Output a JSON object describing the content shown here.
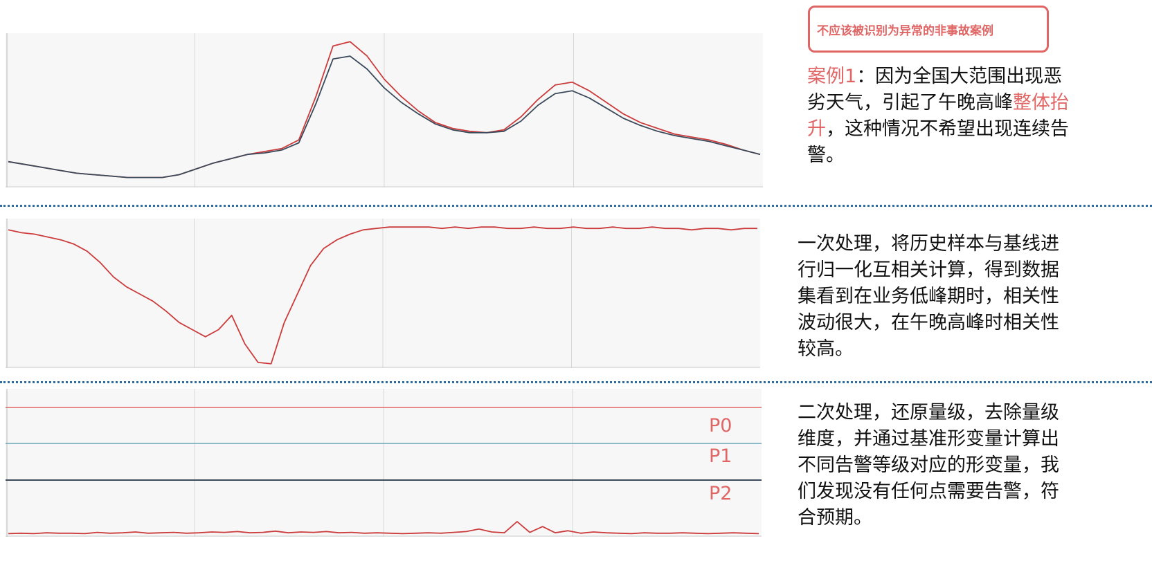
{
  "badge": {
    "text": "不应该被识别为异常的非事故案例"
  },
  "case1": {
    "prefix": "案例1",
    "part1": "：因为全国大范围出现恶劣天气，引起了午晚高峰",
    "highlight": "整体抬升",
    "part2": "，这种情况不希望出现连续告警。"
  },
  "step1": {
    "text": "一次处理，将历史样本与基线进行归一化互相关计算，得到数据集看到在业务低峰期时，相关性波动很大，在午晚高峰时相关性较高。"
  },
  "step2": {
    "text": "二次处理，还原量级，去除量级维度，并通过基准形变量计算出不同告警等级对应的形变量，我们发现没有任何点需要告警，符合预期。"
  },
  "thresholds": {
    "p0": "P0",
    "p1": "P1",
    "p2": "P2"
  },
  "colors": {
    "accent": "#e06666",
    "series_red": "#cc3b3b",
    "series_dark": "#3b4a5a",
    "p1_line": "#6aa6b8",
    "separator": "#2e6da4"
  },
  "chart_data": [
    {
      "type": "line",
      "grid": true,
      "series": [
        {
          "color": "#cc3b3b",
          "values": [
            15,
            13,
            11,
            9,
            7,
            6,
            5,
            4,
            4,
            4,
            6,
            10,
            14,
            17,
            20,
            22,
            24,
            30,
            60,
            95,
            98,
            88,
            72,
            60,
            50,
            42,
            38,
            36,
            35,
            37,
            46,
            58,
            68,
            70,
            64,
            56,
            48,
            42,
            38,
            34,
            32,
            30,
            27,
            23,
            20
          ]
        },
        {
          "color": "#3b4a5a",
          "values": [
            15,
            13,
            11,
            9,
            7,
            6,
            5,
            4,
            4,
            4,
            6,
            10,
            14,
            17,
            20,
            21,
            23,
            28,
            55,
            86,
            88,
            79,
            66,
            56,
            48,
            41,
            37,
            35,
            35,
            36,
            43,
            54,
            62,
            64,
            59,
            52,
            45,
            40,
            36,
            33,
            31,
            29,
            26,
            23,
            20
          ]
        }
      ]
    },
    {
      "type": "line",
      "grid": true,
      "series": [
        {
          "color": "#cc3b3b",
          "values": [
            95,
            93,
            92,
            90,
            88,
            85,
            80,
            72,
            62,
            55,
            50,
            45,
            38,
            30,
            25,
            20,
            25,
            35,
            15,
            2,
            1,
            30,
            50,
            70,
            82,
            88,
            92,
            95,
            96,
            97,
            97,
            97,
            97,
            96,
            97,
            96,
            97,
            97,
            96,
            96,
            97,
            96,
            96,
            97,
            96,
            96,
            97,
            96,
            96,
            97,
            96,
            96,
            95,
            96,
            96,
            95,
            96,
            96
          ]
        }
      ]
    },
    {
      "type": "line",
      "grid": true,
      "thresholds": [
        {
          "name": "P0",
          "color": "#e06666"
        },
        {
          "name": "P1",
          "color": "#6aa6b8"
        },
        {
          "name": "P2",
          "color": "#3b4a5a"
        }
      ],
      "series": [
        {
          "color": "#cc3b3b",
          "values": [
            1,
            2,
            1,
            3,
            2,
            2,
            1,
            4,
            2,
            3,
            5,
            2,
            3,
            4,
            2,
            3,
            5,
            4,
            6,
            3,
            4,
            7,
            3,
            5,
            4,
            6,
            3,
            4,
            2,
            3,
            2,
            1,
            2,
            3,
            2,
            4,
            6,
            12,
            5,
            3,
            30,
            4,
            18,
            3,
            8,
            2,
            5,
            3,
            2,
            1,
            3,
            2,
            2,
            3,
            2,
            1,
            2,
            3,
            2,
            1
          ]
        }
      ]
    }
  ]
}
